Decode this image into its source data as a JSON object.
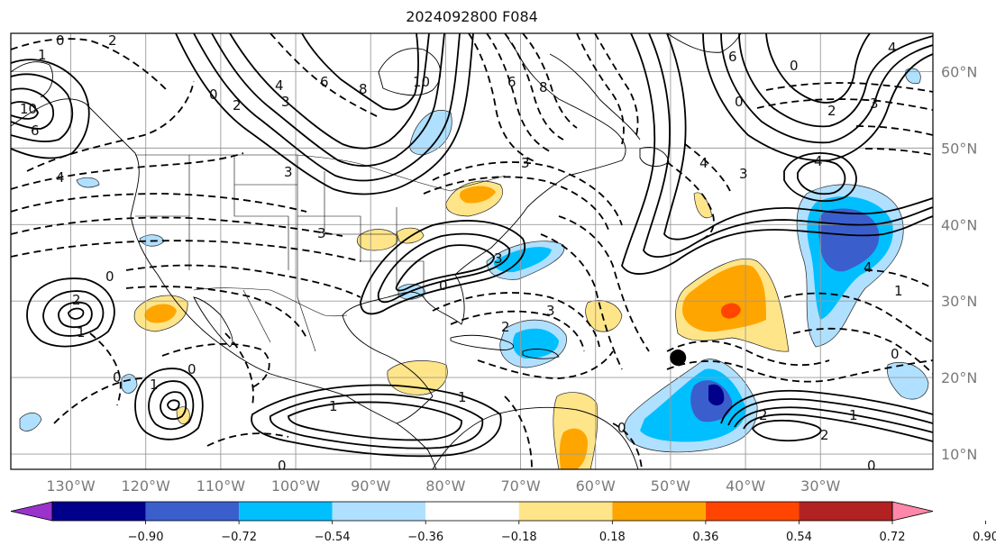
{
  "title": "2024092800 F084",
  "map": {
    "lon_range": [
      -138,
      -15
    ],
    "lat_range": [
      8,
      65
    ],
    "lon_ticks": [
      {
        "value": -130,
        "label": "130°W"
      },
      {
        "value": -120,
        "label": "120°W"
      },
      {
        "value": -110,
        "label": "110°W"
      },
      {
        "value": -100,
        "label": "100°W"
      },
      {
        "value": -90,
        "label": "90°W"
      },
      {
        "value": -80,
        "label": "80°W"
      },
      {
        "value": -70,
        "label": "70°W"
      },
      {
        "value": -60,
        "label": "60°W"
      },
      {
        "value": -50,
        "label": "50°W"
      },
      {
        "value": -40,
        "label": "40°W"
      },
      {
        "value": -30,
        "label": "30°W"
      }
    ],
    "lat_ticks": [
      {
        "value": 10,
        "label": "10°N"
      },
      {
        "value": 20,
        "label": "20°N"
      },
      {
        "value": 30,
        "label": "30°N"
      },
      {
        "value": 40,
        "label": "40°N"
      },
      {
        "value": 50,
        "label": "50°N"
      },
      {
        "value": 60,
        "label": "60°N"
      }
    ],
    "marker": {
      "lon": -49,
      "lat": 22.6
    },
    "contour_labels": [
      "0",
      "1",
      "2",
      "3",
      "4",
      "6",
      "8",
      "10"
    ]
  },
  "colorbar": {
    "levels": [
      "−0.90",
      "−0.72",
      "−0.54",
      "−0.36",
      "−0.18",
      "0.18",
      "0.36",
      "0.54",
      "0.72",
      "0.90"
    ],
    "colors": [
      "#9933cc",
      "#00008b",
      "#3a5fcd",
      "#00bfff",
      "#b0e0ff",
      "#ffffff",
      "#ffe58a",
      "#ffa500",
      "#ff4500",
      "#b22222",
      "#ff88aa"
    ]
  }
}
